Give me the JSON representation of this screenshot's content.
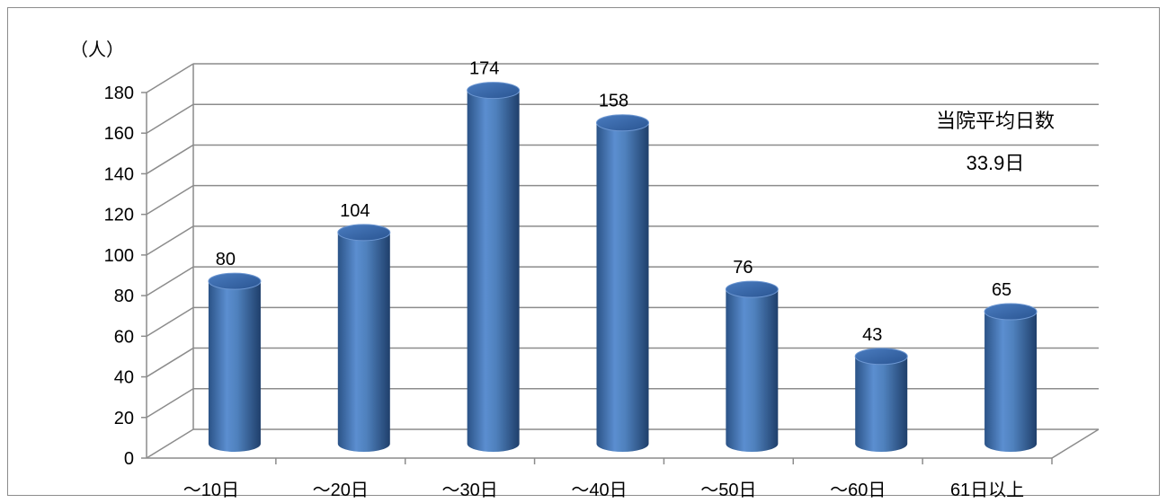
{
  "chart_data": {
    "type": "bar",
    "style": "3d-cylinder",
    "ylabel": "（人）",
    "ylim": [
      0,
      180
    ],
    "yticks": [
      0,
      20,
      40,
      60,
      80,
      100,
      120,
      140,
      160,
      180
    ],
    "categories": [
      "～10日",
      "～20日",
      "～30日",
      "～40日",
      "～50日",
      "～60日",
      "61日以上"
    ],
    "series": [
      {
        "values": [
          80,
          104,
          174,
          158,
          76,
          43,
          65
        ]
      }
    ],
    "annotation": {
      "line1": "当院平均日数",
      "line2": "33.9日"
    },
    "grid": true,
    "legend": "none",
    "colors": {
      "bar": "#4f81bd",
      "bar_dark": "#2b5387",
      "bar_light": "#8fb3e3",
      "grid": "#8c8c8c"
    }
  }
}
